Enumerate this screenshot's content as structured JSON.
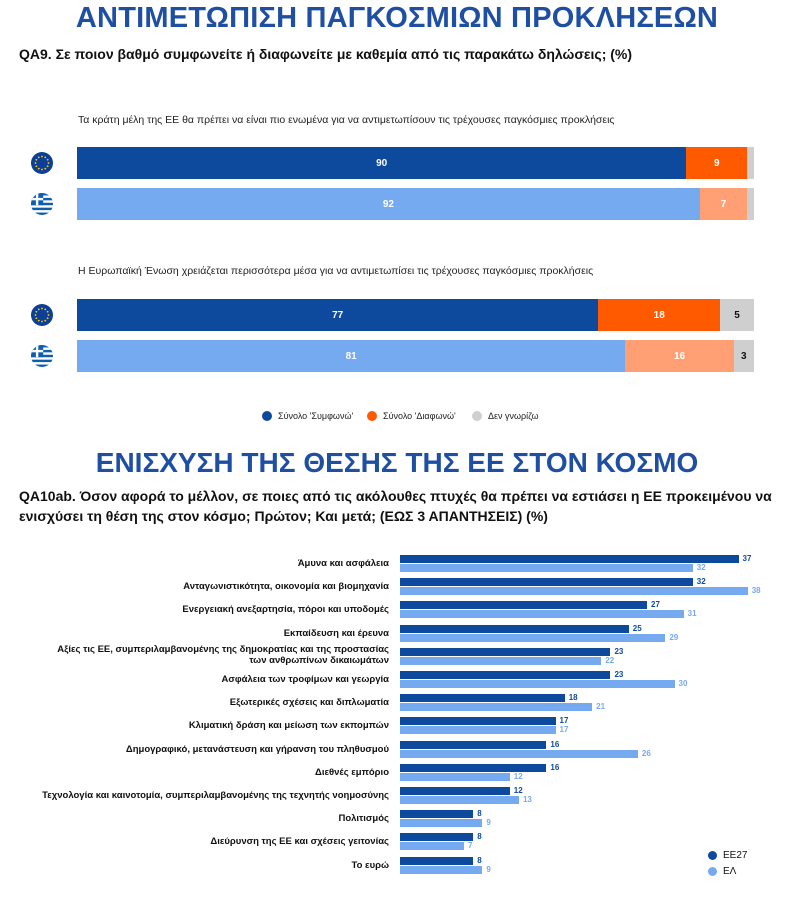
{
  "section1": {
    "title": "ΑΝΤΙΜΕΤΩΠΙΣΗ ΠΑΓΚΟΣΜΙΩΝ ΠΡΟΚΛΗΣΕΩΝ",
    "question": "QA9. Σε ποιον βαθμό συμφωνείτε ή διαφωνείτε με καθεμία από τις παρακάτω δηλώσεις;  (%)"
  },
  "section2": {
    "title": "ΕΝΙΣΧΥΣΗ ΤΗΣ ΘΕΣΗΣ ΤΗΣ ΕΕ ΣΤΟΝ ΚΟΣΜΟ",
    "question": "QA10ab. Όσον αφορά το μέλλον, σε ποιες από τις ακόλουθες πτυχές θα πρέπει να εστιάσει η ΕΕ προκειμένου να ενισχύσει τη θέση της στον κόσμο; Πρώτον; Και μετά; (ΕΩΣ 3 ΑΠΑΝΤΗΣΕΙΣ) (%)"
  },
  "colors": {
    "eu_dark": "#0d4a9e",
    "el_light": "#76aaf0",
    "agree_eu": "#0d4a9e",
    "agree_el": "#76aaf0",
    "disagree_eu": "#ff5a00",
    "disagree_el": "#ff9f73",
    "dk": "#cfcfcf"
  },
  "chart_data": [
    {
      "type": "bar",
      "orientation": "horizontal-stacked",
      "categories": [
        "Τα κράτη μέλη της ΕΕ θα πρέπει να είναι πιο ενωμένα για να αντιμετωπίσουν τις τρέχουσες παγκόσμιες προκλήσεις",
        "Η Ευρωπαϊκή Ένωση χρειάζεται περισσότερα μέσα για να αντιμετωπίσει τις τρέχουσες παγκόσμιες προκλήσεις"
      ],
      "rows": [
        {
          "flag": "eu-flag-icon",
          "agree": 90,
          "disagree": 9,
          "dk": 1
        },
        {
          "flag": "greece-flag-icon",
          "agree": 92,
          "disagree": 7,
          "dk": 1
        },
        {
          "flag": "eu-flag-icon",
          "agree": 77,
          "disagree": 18,
          "dk": 5
        },
        {
          "flag": "greece-flag-icon",
          "agree": 81,
          "disagree": 16,
          "dk": 3
        }
      ],
      "legend": [
        "Σύνολο 'Συμφωνώ'",
        "Σύνολο 'Διαφωνώ'",
        "Δεν γνωρίζω"
      ],
      "legend_position": "bottom"
    },
    {
      "type": "bar",
      "orientation": "horizontal",
      "categories": [
        "Άμυνα και ασφάλεια",
        "Ανταγωνιστικότητα, οικονομία και βιομηχανία",
        "Ενεργειακή ανεξαρτησία, πόροι και υποδομές",
        "Εκπαίδευση και έρευνα",
        "Αξίες τις ΕΕ, συμπεριλαμβανομένης της δημοκρατίας και της προστασίας\nτων ανθρωπίνων δικαιωμάτων",
        "Ασφάλεια των τροφίμων και γεωργία",
        "Εξωτερικές σχέσεις και διπλωματία",
        "Κλιματική δράση και μείωση των εκπομπών",
        "Δημογραφικό, μετανάστευση και γήρανση του πληθυσμού",
        "Διεθνές εμπόριο",
        "Τεχνολογία και καινοτομία, συμπεριλαμβανομένης της τεχνητής νοημοσύνης",
        "Πολιτισμός",
        "Διεύρυνση της ΕΕ και σχέσεις γειτονίας",
        "Το ευρώ"
      ],
      "series": [
        {
          "name": "ΕΕ27",
          "values": [
            37,
            32,
            27,
            25,
            23,
            23,
            18,
            17,
            16,
            16,
            12,
            8,
            8,
            8
          ]
        },
        {
          "name": "ΕΛ",
          "values": [
            32,
            38,
            31,
            29,
            22,
            30,
            21,
            17,
            26,
            12,
            13,
            9,
            7,
            9
          ]
        }
      ],
      "legend_position": "bottom-right"
    }
  ]
}
